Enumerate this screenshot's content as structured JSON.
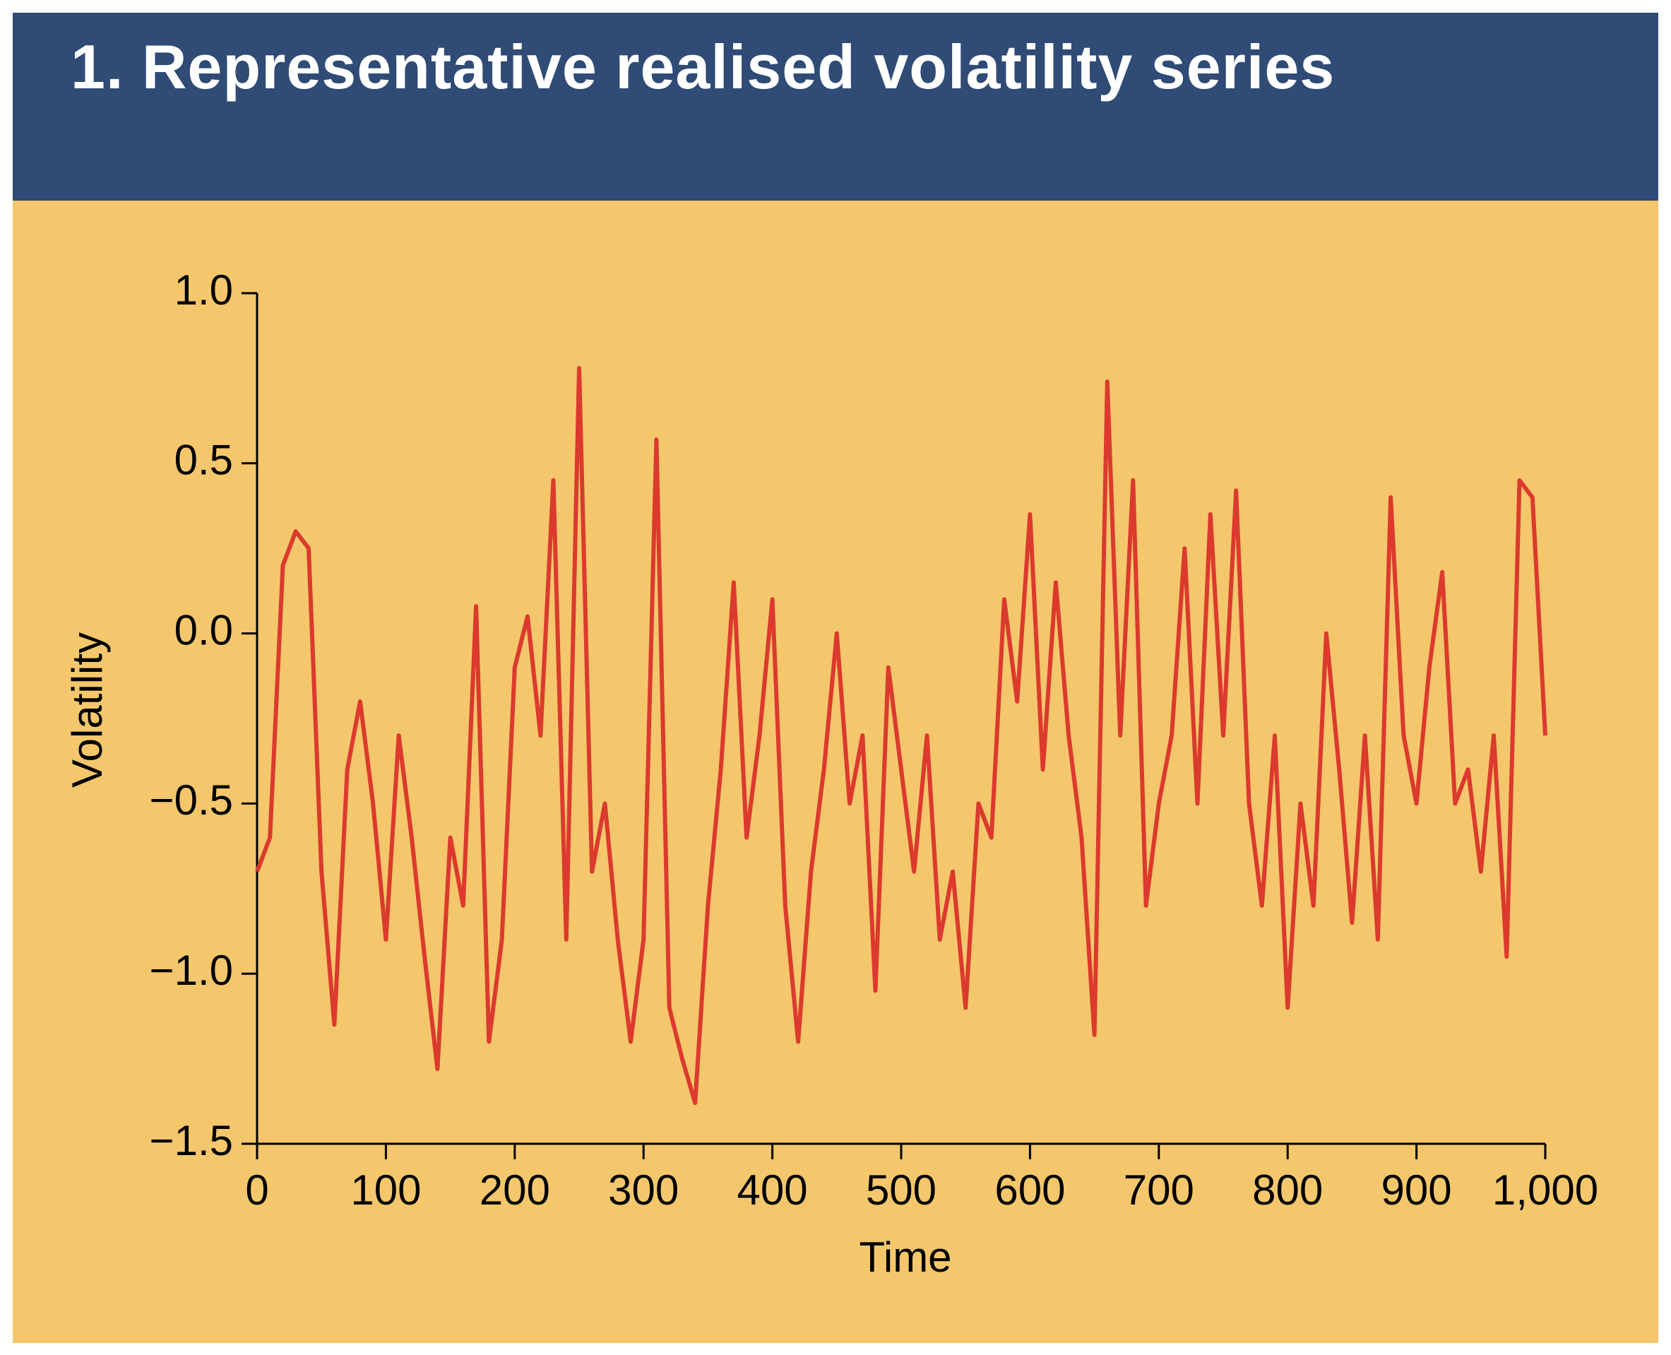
{
  "chart_data": {
    "type": "line",
    "title": "1. Representative realised volatility series",
    "x_label": "Time",
    "y_label": "Volatility",
    "x": [
      0,
      10,
      20,
      30,
      40,
      50,
      60,
      70,
      80,
      90,
      100,
      110,
      120,
      130,
      140,
      150,
      160,
      170,
      180,
      190,
      200,
      210,
      220,
      230,
      240,
      250,
      260,
      270,
      280,
      290,
      300,
      310,
      320,
      330,
      340,
      350,
      360,
      370,
      380,
      390,
      400,
      410,
      420,
      430,
      440,
      450,
      460,
      470,
      480,
      490,
      500,
      510,
      520,
      530,
      540,
      550,
      560,
      570,
      580,
      590,
      600,
      610,
      620,
      630,
      640,
      650,
      660,
      670,
      680,
      690,
      700,
      710,
      720,
      730,
      740,
      750,
      760,
      770,
      780,
      790,
      800,
      810,
      820,
      830,
      840,
      850,
      860,
      870,
      880,
      890,
      900,
      910,
      920,
      930,
      940,
      950,
      960,
      970,
      980,
      990,
      1000
    ],
    "series": [
      {
        "name": "Volatility",
        "color": "#dc3a2e",
        "values": [
          -0.7,
          -0.6,
          0.2,
          0.3,
          0.25,
          -0.7,
          -1.15,
          -0.4,
          -0.2,
          -0.5,
          -0.9,
          -0.3,
          -0.6,
          -0.95,
          -1.28,
          -0.6,
          -0.8,
          0.08,
          -1.2,
          -0.9,
          -0.1,
          0.05,
          -0.3,
          0.45,
          -0.9,
          0.78,
          -0.7,
          -0.5,
          -0.9,
          -1.2,
          -0.9,
          0.57,
          -1.1,
          -1.25,
          -1.38,
          -0.8,
          -0.4,
          0.15,
          -0.6,
          -0.3,
          0.1,
          -0.8,
          -1.2,
          -0.7,
          -0.4,
          0.0,
          -0.5,
          -0.3,
          -1.05,
          -0.1,
          -0.4,
          -0.7,
          -0.3,
          -0.9,
          -0.7,
          -1.1,
          -0.5,
          -0.6,
          0.1,
          -0.2,
          0.35,
          -0.4,
          0.15,
          -0.3,
          -0.6,
          -1.18,
          0.74,
          -0.3,
          0.45,
          -0.8,
          -0.5,
          -0.3,
          0.25,
          -0.5,
          0.35,
          -0.3,
          0.42,
          -0.5,
          -0.8,
          -0.3,
          -1.1,
          -0.5,
          -0.8,
          0.0,
          -0.4,
          -0.85,
          -0.3,
          -0.9,
          0.4,
          -0.3,
          -0.5,
          -0.1,
          0.18,
          -0.5,
          -0.4,
          -0.7,
          -0.3,
          -0.95,
          0.45,
          0.4,
          -0.3
        ]
      }
    ],
    "xlim": [
      0,
      1000
    ],
    "xticks": [
      0,
      100,
      200,
      300,
      400,
      500,
      600,
      700,
      800,
      900,
      {
        "value": 1000,
        "label": "1,000"
      }
    ],
    "ylim": [
      -1.5,
      1.0
    ],
    "yticks": [
      {
        "value": -1.5,
        "label": "−1.5"
      },
      {
        "value": -1.0,
        "label": "−1.0"
      },
      {
        "value": -0.5,
        "label": "−0.5"
      },
      {
        "value": 0,
        "label": "0.0"
      },
      0.5,
      {
        "value": 1.0,
        "label": "1.0"
      }
    ]
  }
}
